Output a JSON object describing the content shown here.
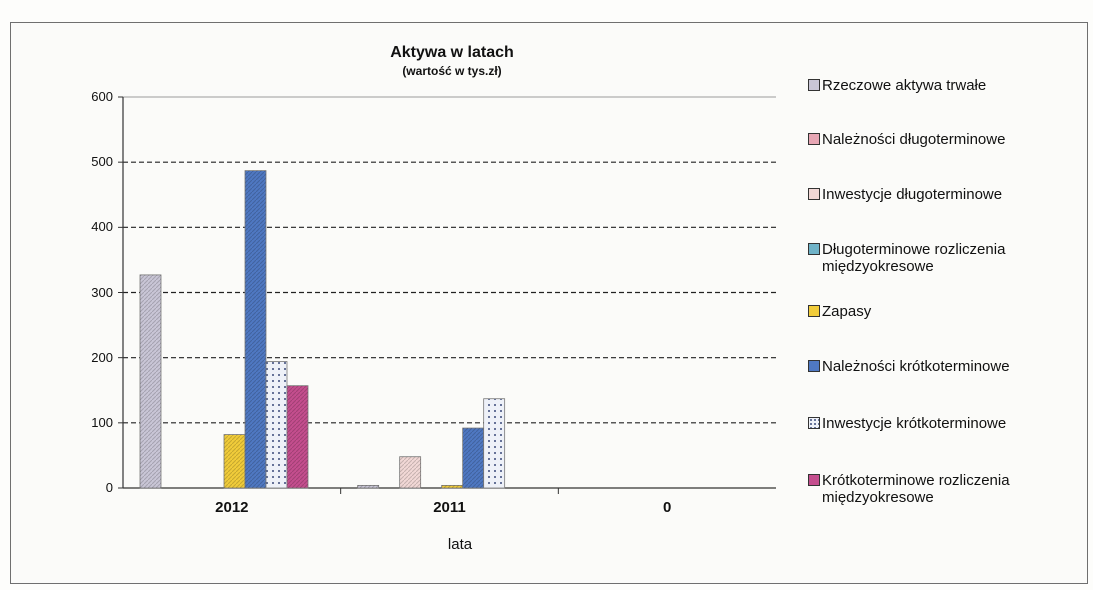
{
  "chart_data": {
    "type": "bar",
    "title": "Aktywa w latach",
    "subtitle": "(wartość w tys.zł)",
    "xlabel": "lata",
    "ylabel": "",
    "categories": [
      "2012",
      "2011",
      "0"
    ],
    "ylim": [
      0,
      600
    ],
    "yticks": [
      "0",
      "100",
      "200",
      "300",
      "400",
      "500",
      "600"
    ],
    "grid": true,
    "legend_position": "right",
    "series": [
      {
        "name": "Rzeczowe aktywa trwałe",
        "values": [
          327,
          4,
          0
        ],
        "color": "#c9c6d6"
      },
      {
        "name": "Należności długoterminowe",
        "values": [
          0,
          0,
          0
        ],
        "color": "#e7a6b4"
      },
      {
        "name": "Inwestycje długoterminowe",
        "values": [
          0,
          48,
          0
        ],
        "color": "#f2d8d6"
      },
      {
        "name": "Długoterminowe rozliczenia międzyokresowe",
        "values": [
          0,
          0,
          0
        ],
        "color": "#6fb3c8"
      },
      {
        "name": "Zapasy",
        "values": [
          82,
          4,
          0
        ],
        "color": "#f1cc3a"
      },
      {
        "name": "Należności krótkoterminowe",
        "values": [
          487,
          92,
          0
        ],
        "color": "#4f78c2"
      },
      {
        "name": "Inwestycje krótkoterminowe",
        "values": [
          194,
          137,
          0
        ],
        "color": "#e9edf6"
      },
      {
        "name": "Krótkoterminowe rozliczenia międzyokresowe",
        "values": [
          157,
          0,
          0
        ],
        "color": "#c44e8e"
      }
    ]
  },
  "legend": {
    "items": [
      {
        "line1": "Rzeczowe aktywa trwałe",
        "line2": ""
      },
      {
        "line1": "Należności długoterminowe",
        "line2": ""
      },
      {
        "line1": "Inwestycje długoterminowe",
        "line2": ""
      },
      {
        "line1": "Długoterminowe rozliczenia",
        "line2": "międzyokresowe"
      },
      {
        "line1": "Zapasy",
        "line2": ""
      },
      {
        "line1": "Należności krótkoterminowe",
        "line2": ""
      },
      {
        "line1": "Inwestycje krótkoterminowe",
        "line2": ""
      },
      {
        "line1": "Krótkoterminowe rozliczenia",
        "line2": "międzyokresowe"
      }
    ]
  }
}
